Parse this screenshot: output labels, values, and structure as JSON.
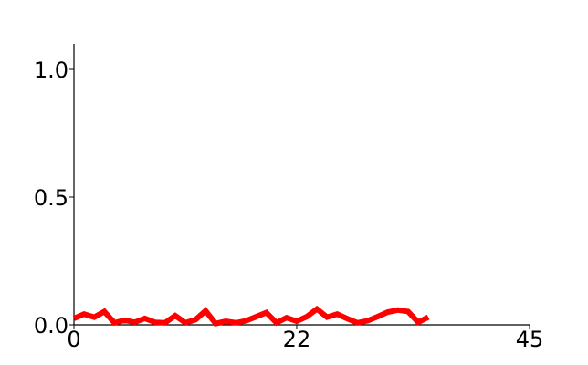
{
  "chart_data": {
    "type": "line",
    "title": "",
    "xlabel": "",
    "ylabel": "",
    "xlim": [
      0,
      45
    ],
    "ylim": [
      0,
      1.1
    ],
    "grid": false,
    "legend": "none",
    "x_ticks": [
      0,
      22,
      45
    ],
    "x_tick_labels": [
      "0",
      "22",
      "45"
    ],
    "y_ticks": [
      0.0,
      0.5,
      1.0
    ],
    "y_tick_labels": [
      "0.0",
      "0.5",
      "1.0"
    ],
    "series": [
      {
        "name": "series-1",
        "color": "#ff0000",
        "x": [
          0,
          1,
          2,
          3,
          4,
          5,
          6,
          7,
          8,
          9,
          10,
          11,
          12,
          13,
          14,
          15,
          16,
          17,
          18,
          19,
          20,
          21,
          22,
          23,
          24,
          25,
          26,
          27,
          28,
          29,
          30,
          31,
          32,
          33,
          34,
          35
        ],
        "values": [
          0.025,
          0.042,
          0.03,
          0.052,
          0.008,
          0.018,
          0.01,
          0.025,
          0.01,
          0.008,
          0.036,
          0.008,
          0.02,
          0.055,
          0.005,
          0.014,
          0.008,
          0.016,
          0.032,
          0.048,
          0.008,
          0.028,
          0.014,
          0.032,
          0.062,
          0.03,
          0.042,
          0.024,
          0.008,
          0.016,
          0.032,
          0.05,
          0.058,
          0.052,
          0.01,
          0.03
        ]
      }
    ]
  }
}
